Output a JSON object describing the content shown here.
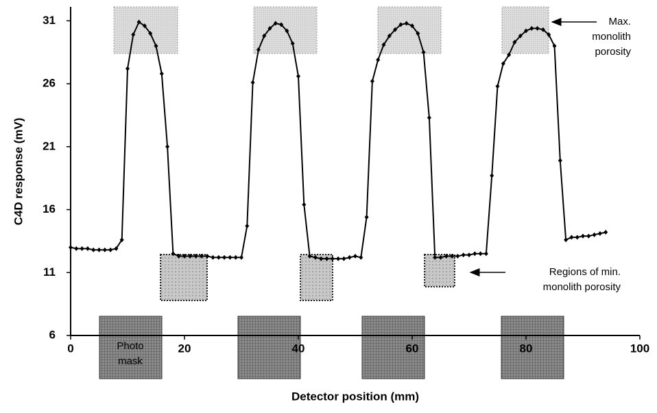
{
  "chart_data": {
    "type": "line",
    "x_label": "Detector position (mm)",
    "y_label": "C4D response (mV)",
    "x": [
      0,
      1,
      2,
      3,
      4,
      5,
      6,
      7,
      8,
      9,
      10,
      11,
      12,
      13,
      14,
      15,
      16,
      17,
      18,
      19,
      20,
      21,
      22,
      23,
      24,
      25,
      26,
      27,
      28,
      29,
      30,
      31,
      32,
      33,
      34,
      35,
      36,
      37,
      38,
      39,
      40,
      41,
      42,
      43,
      44,
      45,
      46,
      47,
      48,
      49,
      50,
      51,
      52,
      53,
      54,
      55,
      56,
      57,
      58,
      59,
      60,
      61,
      62,
      63,
      64,
      65,
      66,
      67,
      68,
      69,
      70,
      71,
      72,
      73,
      74,
      75,
      76,
      77,
      78,
      79,
      80,
      81,
      82,
      83,
      84,
      85,
      86,
      87,
      88,
      89,
      90,
      91,
      92,
      93,
      94
    ],
    "values": [
      13.0,
      12.9,
      12.9,
      12.9,
      12.8,
      12.8,
      12.8,
      12.8,
      12.9,
      13.6,
      27.2,
      29.9,
      30.9,
      30.6,
      30.0,
      29.0,
      26.8,
      21.0,
      12.5,
      12.3,
      12.3,
      12.3,
      12.3,
      12.3,
      12.3,
      12.2,
      12.2,
      12.2,
      12.2,
      12.2,
      12.2,
      14.7,
      26.1,
      28.7,
      29.8,
      30.4,
      30.8,
      30.7,
      30.2,
      29.2,
      26.6,
      16.4,
      12.3,
      12.2,
      12.1,
      12.1,
      12.1,
      12.1,
      12.1,
      12.2,
      12.3,
      12.2,
      15.4,
      26.2,
      27.9,
      29.1,
      29.8,
      30.3,
      30.7,
      30.8,
      30.6,
      30.0,
      28.5,
      23.3,
      12.2,
      12.2,
      12.3,
      12.3,
      12.3,
      12.4,
      12.4,
      12.5,
      12.5,
      12.5,
      18.7,
      25.8,
      27.6,
      28.3,
      29.3,
      29.8,
      30.2,
      30.4,
      30.4,
      30.3,
      29.9,
      29.0,
      19.9,
      13.6,
      13.8,
      13.8,
      13.9,
      13.9,
      14.0,
      14.1,
      14.2
    ],
    "color": "#000000",
    "xlim": [
      0,
      100
    ],
    "xticks": [
      0,
      20,
      40,
      60,
      80,
      100
    ],
    "ylim": [
      6,
      32
    ],
    "yticks": [
      6,
      11,
      16,
      21,
      26,
      31
    ],
    "annotations": [
      {
        "lines": [
          "Max.",
          "monolith",
          "porosity"
        ]
      },
      {
        "lines": [
          "Regions of min.",
          "monolith porosity"
        ]
      },
      {
        "lines": [
          "Photo",
          "mask"
        ]
      }
    ]
  }
}
